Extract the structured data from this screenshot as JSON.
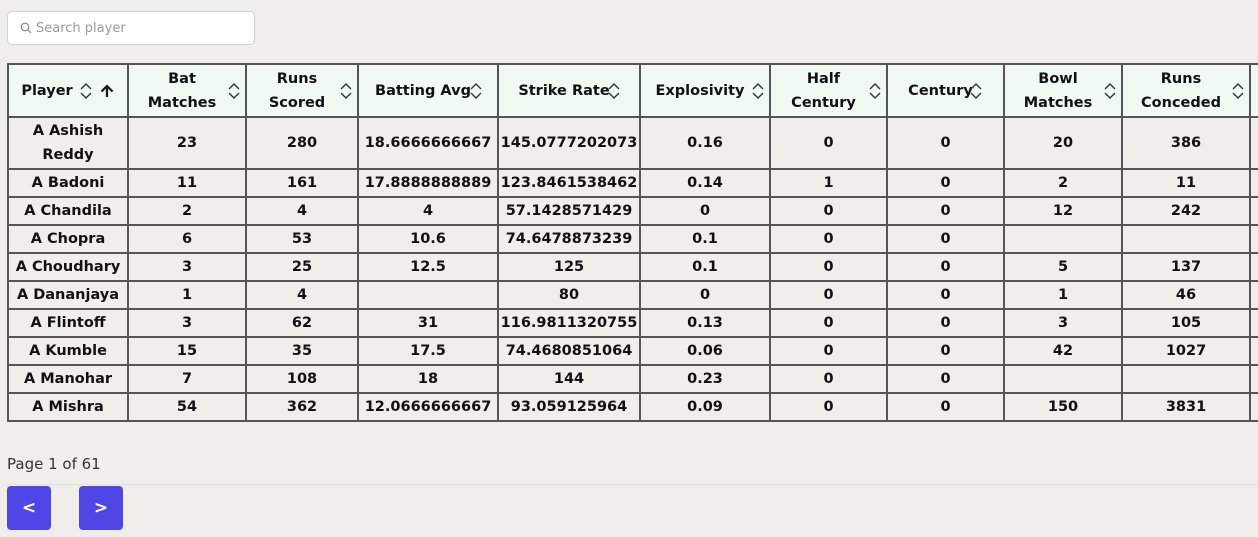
{
  "search": {
    "placeholder": "Search player",
    "value": ""
  },
  "columns": [
    {
      "key": "player",
      "label": "Player",
      "sorted": "asc"
    },
    {
      "key": "bat_matches",
      "label": "Bat Matches"
    },
    {
      "key": "runs_scored",
      "label": "Runs Scored"
    },
    {
      "key": "batting_avg",
      "label": "Batting Avg"
    },
    {
      "key": "strike_rate",
      "label": "Strike Rate"
    },
    {
      "key": "explosivity",
      "label": "Explosivity"
    },
    {
      "key": "half_century",
      "label": "Half Century"
    },
    {
      "key": "century",
      "label": "Century"
    },
    {
      "key": "bowl_matches",
      "label": "Bowl Matches"
    },
    {
      "key": "runs_conceded",
      "label": "Runs Conceded"
    }
  ],
  "rows": [
    [
      "A Ashish Reddy",
      "23",
      "280",
      "18.6666666667",
      "145.0777202073",
      "0.16",
      "0",
      "0",
      "20",
      "386"
    ],
    [
      "A Badoni",
      "11",
      "161",
      "17.8888888889",
      "123.8461538462",
      "0.14",
      "1",
      "0",
      "2",
      "11"
    ],
    [
      "A Chandila",
      "2",
      "4",
      "4",
      "57.1428571429",
      "0",
      "0",
      "0",
      "12",
      "242"
    ],
    [
      "A Chopra",
      "6",
      "53",
      "10.6",
      "74.6478873239",
      "0.1",
      "0",
      "0",
      "",
      ""
    ],
    [
      "A Choudhary",
      "3",
      "25",
      "12.5",
      "125",
      "0.1",
      "0",
      "0",
      "5",
      "137"
    ],
    [
      "A Dananjaya",
      "1",
      "4",
      "",
      "80",
      "0",
      "0",
      "0",
      "1",
      "46"
    ],
    [
      "A Flintoff",
      "3",
      "62",
      "31",
      "116.9811320755",
      "0.13",
      "0",
      "0",
      "3",
      "105"
    ],
    [
      "A Kumble",
      "15",
      "35",
      "17.5",
      "74.4680851064",
      "0.06",
      "0",
      "0",
      "42",
      "1027"
    ],
    [
      "A Manohar",
      "7",
      "108",
      "18",
      "144",
      "0.23",
      "0",
      "0",
      "",
      ""
    ],
    [
      "A Mishra",
      "54",
      "362",
      "12.0666666667",
      "93.059125964",
      "0.09",
      "0",
      "0",
      "150",
      "3831"
    ]
  ],
  "pagination": {
    "text": "Page 1 of 61",
    "prev_label": "<",
    "next_label": ">"
  },
  "colors": {
    "header_bg": "#f1f9f3",
    "page_bg": "#efeeea",
    "button": "#4f46e5",
    "border": "#555555"
  },
  "icons": {
    "search": "search-icon",
    "sort": "sort-icon",
    "sort_asc": "arrow-up-icon"
  }
}
